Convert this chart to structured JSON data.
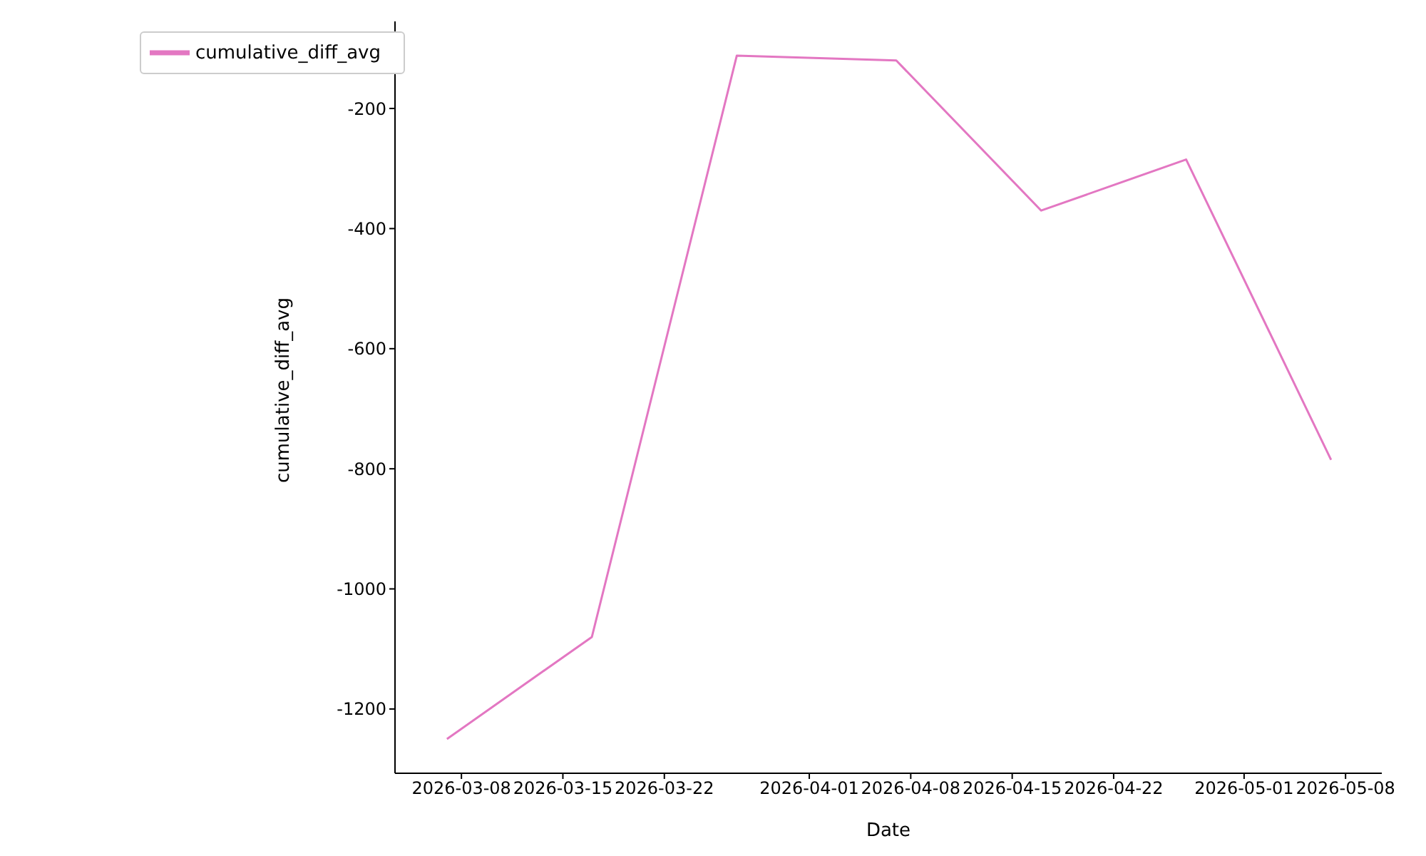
{
  "chart_data": {
    "type": "line",
    "xlabel": "Date",
    "ylabel": "cumulative_diff_avg",
    "x": [
      "2026-03-07",
      "2026-03-17",
      "2026-03-27",
      "2026-04-07",
      "2026-04-17",
      "2026-04-27",
      "2026-05-07"
    ],
    "series": [
      {
        "name": "cumulative_diff_avg",
        "color": "#e377c2",
        "values": [
          -1250,
          -1080,
          -112,
          -120,
          -370,
          -285,
          -785
        ]
      }
    ],
    "xlim": [
      "2026-03-03T10:00",
      "2026-05-10T12:00"
    ],
    "xticks": [
      "2026-03-08",
      "2026-03-15",
      "2026-03-22",
      "2026-04-01",
      "2026-04-08",
      "2026-04-15",
      "2026-04-22",
      "2026-05-01",
      "2026-05-08"
    ],
    "ylim": [
      -1307,
      -55
    ],
    "yticks": [
      -1200,
      -1000,
      -800,
      -600,
      -400,
      -200
    ],
    "legend": "top left",
    "grid": false,
    "marker": "none",
    "line_style": "solid"
  }
}
